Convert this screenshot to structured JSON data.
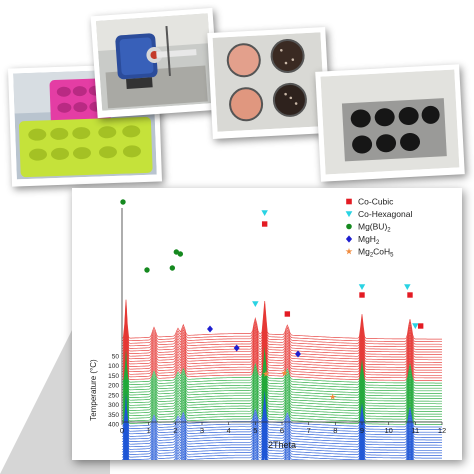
{
  "photos": [
    {
      "subject": "silicone-mold-trays",
      "colors": [
        "#e43da4",
        "#c5e23a"
      ]
    },
    {
      "subject": "tube-furnace-apparatus",
      "colors": [
        "#2b4c9b",
        "#d9d9d9"
      ]
    },
    {
      "subject": "sample-pellets-in-holder",
      "colors": [
        "#e3a08c",
        "#3a2a22"
      ]
    },
    {
      "subject": "pellets-in-metal-holder",
      "colors": [
        "#9a9a98",
        "#161616"
      ]
    }
  ],
  "chart_data": {
    "type": "line",
    "xlabel": "2Theta",
    "ylabel": "Temperature (°C)",
    "x_ticks": [
      "0",
      "1",
      "2",
      "3",
      "4",
      "5",
      "6",
      "7",
      "8",
      "9",
      "10",
      "11",
      "12"
    ],
    "y_ticks": [
      "50",
      "100",
      "150",
      "200",
      "250",
      "300",
      "350",
      "400"
    ],
    "xlim": [
      0,
      12
    ],
    "temperature_range": [
      50,
      400
    ],
    "bands": [
      {
        "range": [
          50,
          150
        ],
        "color": "#e53935"
      },
      {
        "range": [
          150,
          250
        ],
        "color": "#21a83a"
      },
      {
        "range": [
          250,
          400
        ],
        "color": "#1f57d6"
      }
    ],
    "peaks_2theta": [
      0.15,
      1.2,
      2.1,
      2.3,
      5.0,
      5.35,
      6.2,
      9.0,
      10.8
    ],
    "legend": [
      {
        "label": "Co-Cubic",
        "marker": "square",
        "color": "#e31b23"
      },
      {
        "label": "Co-Hexagonal",
        "marker": "triangle-down",
        "color": "#29d3e3"
      },
      {
        "label": "Mg(BU)",
        "sub": "2",
        "marker": "circle",
        "color": "#15891f"
      },
      {
        "label": "MgH",
        "sub": "2",
        "marker": "diamond",
        "color": "#1e1ecf"
      },
      {
        "label": "Mg",
        "sub": "2",
        "suffix": "CoH",
        "sub2": "5",
        "marker": "star",
        "color": "#f08a3c"
      }
    ],
    "phase_markers": [
      {
        "phase": "Co-Cubic",
        "x": [
          5.35,
          6.2,
          9.0,
          10.8,
          11.2
        ]
      },
      {
        "phase": "Co-Hexagonal",
        "x": [
          5.35,
          5.0,
          9.0,
          10.7,
          11.0
        ]
      },
      {
        "phase": "Mg(BU)2",
        "x": [
          0.15,
          1.05,
          2.0,
          2.15,
          2.3
        ]
      },
      {
        "phase": "MgH2",
        "x": [
          3.3,
          4.3,
          6.6
        ]
      },
      {
        "phase": "Mg2CoH5",
        "x": [
          5.4,
          6.1,
          7.9
        ]
      }
    ]
  }
}
